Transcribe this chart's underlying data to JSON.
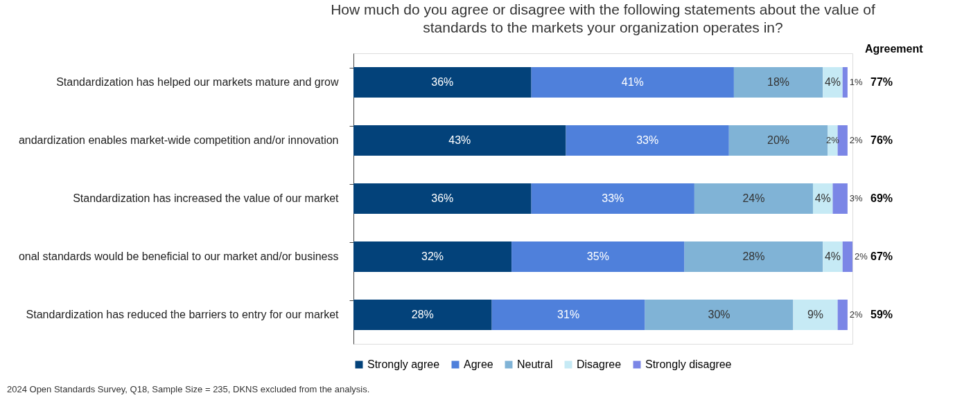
{
  "chart_data": {
    "type": "bar",
    "orientation": "horizontal",
    "stacked": true,
    "title": "How much do you agree or disagree with the following statements about the value of\nstandards to the markets your organization operates in?",
    "categories": [
      "Standardization has helped our markets mature and grow",
      "andardization enables market-wide competition and/or innovation",
      "Standardization has increased the value of our market",
      "onal standards would be beneficial to our market and/or business",
      "Standardization has reduced the barriers to entry for our market"
    ],
    "series": [
      {
        "name": "Strongly agree",
        "color": "#03427a",
        "values": [
          36,
          43,
          36,
          32,
          28
        ],
        "value_labels": [
          "36%",
          "43%",
          "36%",
          "32%",
          "28%"
        ]
      },
      {
        "name": "Agree",
        "color": "#4f80db",
        "values": [
          41,
          33,
          33,
          35,
          31
        ],
        "value_labels": [
          "41%",
          "33%",
          "33%",
          "35%",
          "31%"
        ]
      },
      {
        "name": "Neutral",
        "color": "#80b3d6",
        "values": [
          18,
          20,
          24,
          28,
          30
        ],
        "value_labels": [
          "18%",
          "20%",
          "24%",
          "28%",
          "30%"
        ]
      },
      {
        "name": "Disagree",
        "color": "#c6eaf5",
        "values": [
          4,
          2,
          4,
          4,
          9
        ],
        "value_labels": [
          "4%",
          "2%",
          "4%",
          "4%",
          "9%"
        ]
      },
      {
        "name": "Strongly disagree",
        "color": "#7b86e6",
        "values": [
          1,
          2,
          3,
          2,
          2
        ],
        "value_labels": [
          "1%",
          "2%",
          "3%",
          "2%",
          "2%"
        ]
      }
    ],
    "xlim": [
      0,
      101
    ],
    "tick_labels": "y",
    "grid": false,
    "legend": "bottom",
    "annotations": [
      "Agreement",
      "77%",
      "76%",
      "69%",
      "67%",
      "59%",
      "2024 Open Standards Survey, Q18, Sample Size = 235, DKNS excluded from the analysis."
    ]
  }
}
